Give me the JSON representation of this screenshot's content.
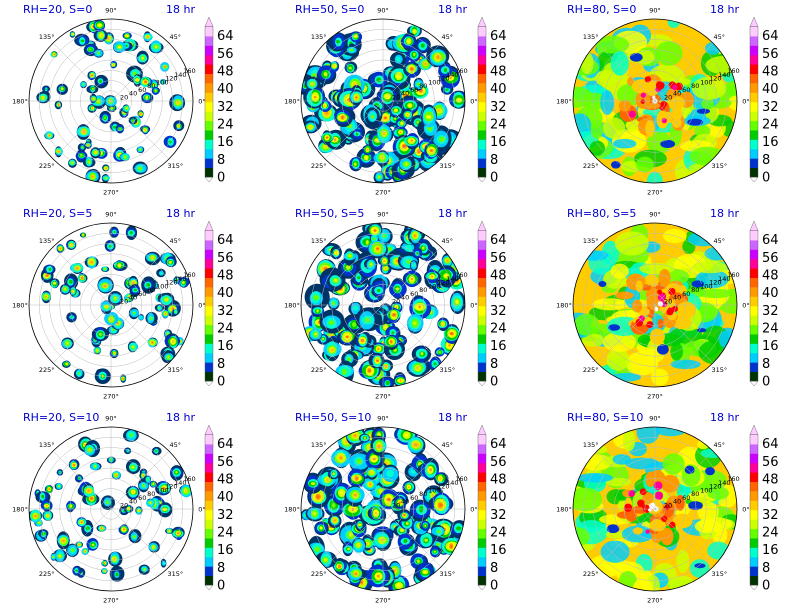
{
  "colors": {
    "title": "#0000cc",
    "levels": [
      "#003300",
      "#0033cc",
      "#00ccff",
      "#00ffcc",
      "#00cc00",
      "#66ff00",
      "#ccff00",
      "#ffff00",
      "#ffcc00",
      "#ff9900",
      "#ff6600",
      "#ff0000",
      "#ff0099",
      "#cc00ff",
      "#cc66ff",
      "#ffccff"
    ]
  },
  "chart_data": {
    "type": "polar-filled-contour-grid",
    "time_label": "18 hr",
    "angle_ticks": [
      "0°",
      "45°",
      "90°",
      "135°",
      "180°",
      "225°",
      "270°",
      "315°"
    ],
    "radial_ticks": [
      "20",
      "40",
      "60",
      "80",
      "100",
      "120",
      "140",
      "160"
    ],
    "colorbar_ticks": [
      "0",
      "8",
      "16",
      "24",
      "32",
      "40",
      "48",
      "56",
      "64"
    ],
    "colorbar_range": [
      0,
      68
    ],
    "panels": [
      {
        "title": "RH=20, S=0",
        "rh": 20,
        "s": 0
      },
      {
        "title": "RH=50, S=0",
        "rh": 50,
        "s": 0
      },
      {
        "title": "RH=80, S=0",
        "rh": 80,
        "s": 0
      },
      {
        "title": "RH=20, S=5",
        "rh": 20,
        "s": 5
      },
      {
        "title": "RH=50, S=5",
        "rh": 50,
        "s": 5
      },
      {
        "title": "RH=80, S=5",
        "rh": 80,
        "s": 5
      },
      {
        "title": "RH=20, S=10",
        "rh": 20,
        "s": 10
      },
      {
        "title": "RH=50, S=10",
        "rh": 50,
        "s": 10
      },
      {
        "title": "RH=80, S=10",
        "rh": 80,
        "s": 10
      }
    ]
  }
}
